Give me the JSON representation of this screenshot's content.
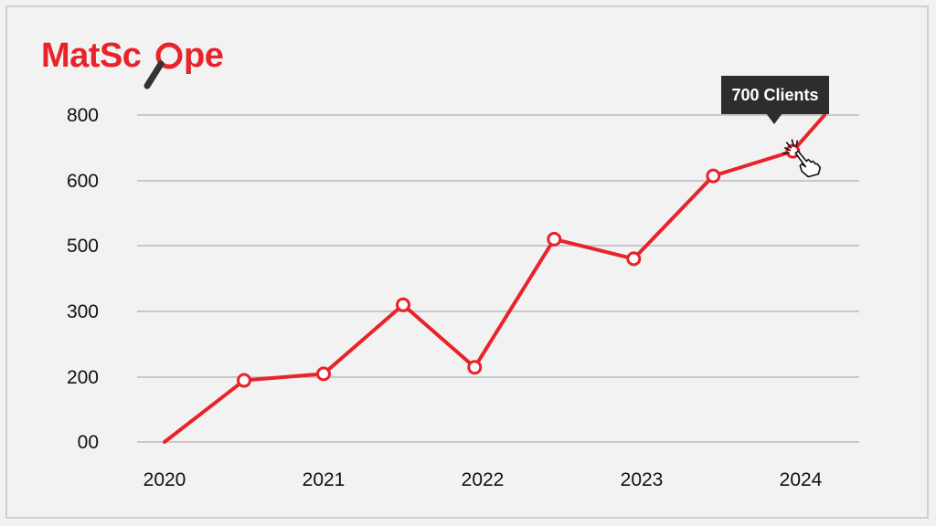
{
  "logo": {
    "text": "MatScope",
    "icon": "magnifier-icon"
  },
  "tooltip": {
    "text": "700 Clients"
  },
  "colors": {
    "line": "#e8232a",
    "grid": "#c8c8c8",
    "background": "#f2f2f2"
  },
  "chart_data": {
    "type": "line",
    "title": "",
    "xlabel": "",
    "ylabel": "",
    "x_ticks": [
      "2020",
      "2021",
      "2022",
      "2023",
      "2024"
    ],
    "y_ticks": [
      "00",
      "200",
      "300",
      "500",
      "600",
      "800"
    ],
    "grid": true,
    "series": [
      {
        "points": [
          {
            "x": 2020.0,
            "y": 0
          },
          {
            "x": 2020.5,
            "y": 190
          },
          {
            "x": 2021.0,
            "y": 205
          },
          {
            "x": 2021.5,
            "y": 320
          },
          {
            "x": 2021.95,
            "y": 215
          },
          {
            "x": 2022.45,
            "y": 510
          },
          {
            "x": 2022.95,
            "y": 460
          },
          {
            "x": 2023.45,
            "y": 615
          },
          {
            "x": 2023.95,
            "y": 690
          },
          {
            "x": 2024.15,
            "y": 800
          }
        ],
        "hollow_markers": [
          1,
          2,
          3,
          4,
          5,
          6,
          7,
          8
        ]
      }
    ],
    "highlight": {
      "point_index": 8,
      "label": "700 Clients"
    }
  }
}
